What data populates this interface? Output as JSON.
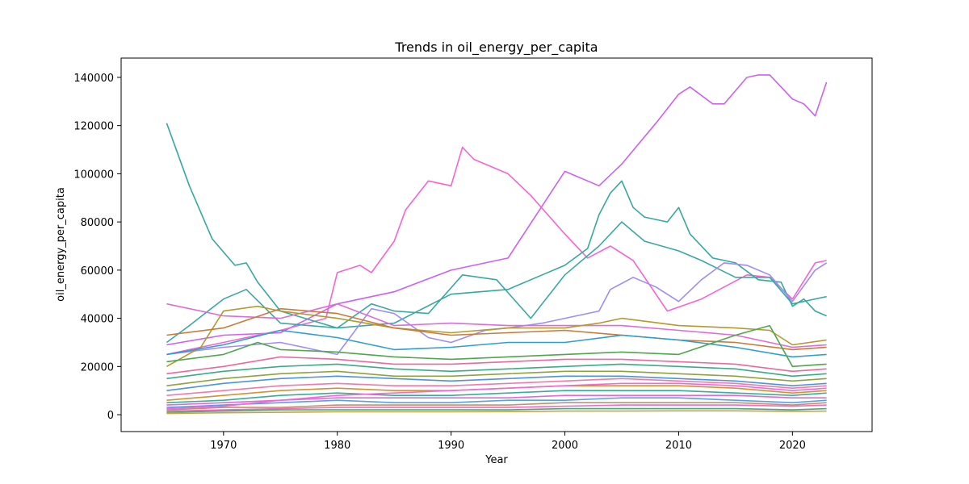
{
  "chart_data": {
    "type": "line",
    "title": "Trends in oil_energy_per_capita",
    "xlabel": "Year",
    "ylabel": "oil_energy_per_capita",
    "xlim": [
      1961,
      2027
    ],
    "ylim": [
      -7000,
      148000
    ],
    "xticks": [
      1970,
      1980,
      1990,
      2000,
      2010,
      2020
    ],
    "yticks": [
      0,
      20000,
      40000,
      60000,
      80000,
      100000,
      120000,
      140000
    ],
    "grid": false,
    "legend": "none",
    "series": [
      {
        "color": "#cc61f0",
        "x": [
          1965,
          1970,
          1975,
          1980,
          1985,
          1990,
          1995,
          2000,
          2003,
          2005,
          2008,
          2010,
          2011,
          2013,
          2014,
          2016,
          2017,
          2018,
          2019,
          2020,
          2021,
          2022,
          2023
        ],
        "y": [
          29000,
          33000,
          34000,
          46000,
          51000,
          60000,
          65000,
          101000,
          95000,
          104000,
          121000,
          133000,
          136000,
          129000,
          129000,
          140000,
          141000,
          141000,
          136000,
          131000,
          129000,
          124000,
          138000
        ]
      },
      {
        "color": "#f564d4",
        "x": [
          1965,
          1970,
          1975,
          1979,
          1980,
          1982,
          1983,
          1985,
          1986,
          1988,
          1990,
          1991,
          1992,
          1995,
          1997,
          2000,
          2002,
          2004,
          2006,
          2009,
          2012,
          2016,
          2018,
          2020,
          2022,
          2023
        ],
        "y": [
          25000,
          30000,
          35000,
          40000,
          59000,
          62000,
          59000,
          72000,
          85000,
          97000,
          95000,
          111000,
          106000,
          100000,
          91000,
          75000,
          65000,
          70000,
          64000,
          43000,
          48000,
          58000,
          57000,
          48000,
          63000,
          64000
        ]
      },
      {
        "color": "#35a99e",
        "x": [
          1965,
          1967,
          1969,
          1971,
          1972,
          1973,
          1975,
          1980,
          1985,
          1990,
          1995,
          1998,
          2000,
          2002,
          2003,
          2004,
          2005,
          2006,
          2007,
          2009,
          2010,
          2011,
          2013,
          2015,
          2017,
          2019,
          2020,
          2021,
          2022,
          2023
        ],
        "y": [
          121000,
          95000,
          73000,
          62000,
          63000,
          55000,
          43000,
          36000,
          38000,
          50000,
          52000,
          58000,
          62000,
          69000,
          83000,
          92000,
          97000,
          86000,
          82000,
          80000,
          86000,
          75000,
          65000,
          63000,
          56000,
          55000,
          45000,
          48000,
          43000,
          41000
        ]
      },
      {
        "color": "#3aa8a4",
        "x": [
          1965,
          1967,
          1970,
          1972,
          1975,
          1980,
          1983,
          1985,
          1988,
          1991,
          1994,
          1997,
          2000,
          2003,
          2005,
          2007,
          2010,
          2012,
          2015,
          2018,
          2020,
          2023
        ],
        "y": [
          30000,
          37000,
          48000,
          52000,
          38000,
          36000,
          46000,
          43000,
          42000,
          58000,
          56000,
          40000,
          58000,
          70000,
          80000,
          72000,
          68000,
          64000,
          57000,
          57000,
          46000,
          49000
        ]
      },
      {
        "color": "#9f8cf6",
        "x": [
          1965,
          1970,
          1975,
          1980,
          1983,
          1985,
          1988,
          1990,
          1993,
          1995,
          1998,
          2000,
          2003,
          2004,
          2006,
          2008,
          2010,
          2012,
          2014,
          2016,
          2018,
          2020,
          2022,
          2023
        ],
        "y": [
          25000,
          28000,
          30000,
          25000,
          44000,
          42000,
          32000,
          30000,
          35000,
          36000,
          38000,
          40000,
          43000,
          52000,
          57000,
          53000,
          47000,
          56000,
          63000,
          62000,
          58000,
          47000,
          60000,
          63000
        ]
      },
      {
        "color": "#db6dd6",
        "x": [
          1965,
          1970,
          1975,
          1980,
          1985,
          1990,
          1995,
          2000,
          2005,
          2010,
          2015,
          2020,
          2023
        ],
        "y": [
          46000,
          41000,
          40000,
          46000,
          37000,
          38000,
          37000,
          37000,
          37000,
          35000,
          33000,
          28000,
          29000
        ]
      },
      {
        "color": "#b49a2c",
        "x": [
          1965,
          1968,
          1970,
          1973,
          1975,
          1980,
          1985,
          1990,
          1995,
          2000,
          2003,
          2005,
          2010,
          2015,
          2018,
          2020,
          2023
        ],
        "y": [
          20000,
          28000,
          43000,
          45000,
          43000,
          40000,
          36000,
          34000,
          36000,
          36000,
          38000,
          40000,
          37000,
          36000,
          35000,
          29000,
          31000
        ]
      },
      {
        "color": "#c97a3a",
        "x": [
          1965,
          1970,
          1975,
          1980,
          1985,
          1990,
          1995,
          2000,
          2005,
          2010,
          2015,
          2020,
          2023
        ],
        "y": [
          33000,
          36000,
          44000,
          42000,
          36000,
          33000,
          34000,
          35000,
          33000,
          31000,
          30000,
          27000,
          28000
        ]
      },
      {
        "color": "#2e9fcc",
        "x": [
          1965,
          1970,
          1975,
          1980,
          1985,
          1990,
          1995,
          2000,
          2005,
          2010,
          2015,
          2020,
          2023
        ],
        "y": [
          25000,
          29000,
          35000,
          32000,
          27000,
          28000,
          30000,
          30000,
          33000,
          31000,
          28000,
          24000,
          25000
        ]
      },
      {
        "color": "#4ea64e",
        "x": [
          1965,
          1970,
          1973,
          1975,
          1980,
          1985,
          1990,
          1995,
          2000,
          2005,
          2010,
          2015,
          2018,
          2020,
          2023
        ],
        "y": [
          22000,
          25000,
          30000,
          27000,
          26000,
          24000,
          23000,
          24000,
          25000,
          26000,
          25000,
          33000,
          37000,
          20000,
          21000
        ]
      },
      {
        "color": "#e76aa0",
        "x": [
          1965,
          1970,
          1975,
          1980,
          1985,
          1990,
          1995,
          2000,
          2005,
          2010,
          2015,
          2020,
          2023
        ],
        "y": [
          17000,
          20000,
          24000,
          23000,
          21000,
          21000,
          22000,
          23000,
          23000,
          22000,
          21000,
          18000,
          19000
        ]
      },
      {
        "color": "#3bab86",
        "x": [
          1965,
          1970,
          1975,
          1980,
          1985,
          1990,
          1995,
          2000,
          2005,
          2010,
          2015,
          2020,
          2023
        ],
        "y": [
          15000,
          18000,
          20000,
          21000,
          19000,
          18000,
          19000,
          20000,
          21000,
          20000,
          19000,
          16000,
          17000
        ]
      },
      {
        "color": "#8da33a",
        "x": [
          1965,
          1970,
          1975,
          1980,
          1985,
          1990,
          1995,
          2000,
          2005,
          2010,
          2015,
          2020,
          2023
        ],
        "y": [
          12000,
          15000,
          17000,
          18000,
          16000,
          16000,
          17000,
          18000,
          18000,
          17000,
          16000,
          14000,
          15000
        ]
      },
      {
        "color": "#4a94e0",
        "x": [
          1965,
          1970,
          1975,
          1980,
          1985,
          1990,
          1995,
          2000,
          2005,
          2010,
          2015,
          2020,
          2023
        ],
        "y": [
          10000,
          13000,
          15000,
          16000,
          15000,
          14000,
          15000,
          16000,
          16000,
          15000,
          14000,
          12000,
          13000
        ]
      },
      {
        "color": "#f07aa8",
        "x": [
          1965,
          1970,
          1975,
          1980,
          1985,
          1990,
          1995,
          2000,
          2005,
          2010,
          2015,
          2020,
          2023
        ],
        "y": [
          8000,
          10000,
          12000,
          13000,
          12000,
          12000,
          13000,
          14000,
          15000,
          14000,
          13000,
          11000,
          12000
        ]
      },
      {
        "color": "#d29232",
        "x": [
          1965,
          1970,
          1975,
          1980,
          1985,
          1990,
          1995,
          2000,
          2005,
          2010,
          2015,
          2020,
          2023
        ],
        "y": [
          6000,
          8000,
          10000,
          11000,
          10000,
          10000,
          11000,
          12000,
          12000,
          12000,
          11000,
          9000,
          10000
        ]
      },
      {
        "color": "#36ad9a",
        "x": [
          1965,
          1970,
          1975,
          1980,
          1985,
          1990,
          1995,
          2000,
          2005,
          2010,
          2015,
          2020,
          2023
        ],
        "y": [
          5000,
          6000,
          8000,
          9000,
          8000,
          8000,
          9000,
          10000,
          10000,
          10000,
          9000,
          8000,
          9000
        ]
      },
      {
        "color": "#e36ad0",
        "x": [
          1965,
          1970,
          1975,
          1980,
          1985,
          1990,
          1995,
          2000,
          2005,
          2010,
          2015,
          2020,
          2023
        ],
        "y": [
          4000,
          5000,
          6000,
          7000,
          7000,
          7000,
          7000,
          8000,
          8000,
          8000,
          8000,
          7000,
          7000
        ]
      },
      {
        "color": "#57a0e8",
        "x": [
          1965,
          1970,
          1975,
          1980,
          1985,
          1990,
          1995,
          2000,
          2005,
          2010,
          2015,
          2020,
          2023
        ],
        "y": [
          3000,
          4000,
          5000,
          6000,
          5000,
          5000,
          6000,
          6000,
          7000,
          7000,
          6000,
          5000,
          6000
        ]
      },
      {
        "color": "#c4906a",
        "x": [
          1965,
          1970,
          1975,
          1980,
          1985,
          1990,
          1995,
          2000,
          2005,
          2010,
          2015,
          2020,
          2023
        ],
        "y": [
          2000,
          3000,
          3000,
          4000,
          4000,
          4000,
          4000,
          5000,
          5000,
          5000,
          5000,
          4000,
          5000
        ]
      },
      {
        "color": "#f26bc4",
        "x": [
          1965,
          1970,
          1975,
          1980,
          1985,
          1990,
          1995,
          2000,
          2005,
          2010,
          2015,
          2020,
          2023
        ],
        "y": [
          1500,
          2000,
          2500,
          3000,
          3000,
          3000,
          3000,
          3500,
          4000,
          4000,
          4000,
          3500,
          4000
        ]
      },
      {
        "color": "#4ca77a",
        "x": [
          1965,
          1970,
          1975,
          1980,
          1985,
          1990,
          1995,
          2000,
          2005,
          2010,
          2015,
          2020,
          2023
        ],
        "y": [
          1000,
          1500,
          2000,
          2000,
          2000,
          2000,
          2000,
          2500,
          2500,
          2500,
          2500,
          2000,
          2500
        ]
      },
      {
        "color": "#d0a040",
        "x": [
          1965,
          1970,
          1975,
          1980,
          1985,
          1990,
          1995,
          2000,
          2005,
          2010,
          2015,
          2020,
          2023
        ],
        "y": [
          500,
          800,
          1000,
          1200,
          1200,
          1200,
          1300,
          1500,
          1500,
          1600,
          1600,
          1400,
          1500
        ]
      },
      {
        "color": "#f06bd8",
        "x": [
          1965,
          1970,
          1975,
          1980,
          1985,
          1990,
          1995,
          2000,
          2005,
          2010,
          2015,
          2020,
          2023
        ],
        "y": [
          2500,
          3500,
          6000,
          8000,
          9000,
          10000,
          11000,
          12000,
          13000,
          13000,
          12000,
          10000,
          11000
        ]
      }
    ]
  }
}
